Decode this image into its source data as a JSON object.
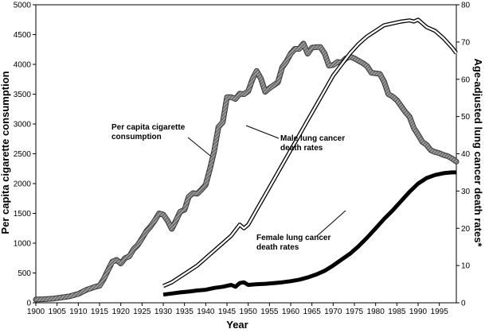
{
  "chart_data": {
    "type": "line",
    "xlabel": "Year",
    "ylabel_left": "Per capita cigarette consumption",
    "ylabel_right": "Age-adjusted lung cancer death rates*",
    "xlim": [
      1900,
      1999
    ],
    "ylim_left": [
      0,
      5000
    ],
    "ylim_right": [
      0,
      80
    ],
    "x_ticks": [
      1900,
      1905,
      1910,
      1915,
      1920,
      1925,
      1930,
      1935,
      1940,
      1945,
      1950,
      1955,
      1960,
      1965,
      1970,
      1975,
      1980,
      1985,
      1990,
      1995
    ],
    "y_ticks_left": [
      0,
      500,
      1000,
      1500,
      2000,
      2500,
      3000,
      3500,
      4000,
      4500,
      5000
    ],
    "y_ticks_right": [
      0,
      10,
      20,
      30,
      40,
      50,
      60,
      70,
      80
    ],
    "grid": false,
    "series": [
      {
        "name": "Per capita cigarette consumption",
        "axis": "left",
        "label_lines": [
          "Per capita cigarette",
          "consumption"
        ],
        "x": [
          1900,
          1902,
          1904,
          1906,
          1908,
          1910,
          1912,
          1914,
          1915,
          1916,
          1917,
          1918,
          1919,
          1920,
          1921,
          1922,
          1923,
          1924,
          1925,
          1926,
          1927,
          1928,
          1929,
          1930,
          1931,
          1932,
          1933,
          1934,
          1935,
          1936,
          1937,
          1938,
          1939,
          1940,
          1941,
          1942,
          1943,
          1944,
          1945,
          1946,
          1947,
          1948,
          1949,
          1950,
          1951,
          1952,
          1953,
          1954,
          1955,
          1956,
          1957,
          1958,
          1959,
          1960,
          1961,
          1962,
          1963,
          1964,
          1965,
          1966,
          1967,
          1968,
          1969,
          1970,
          1971,
          1972,
          1973,
          1974,
          1975,
          1976,
          1977,
          1978,
          1979,
          1980,
          1981,
          1982,
          1983,
          1984,
          1985,
          1986,
          1987,
          1988,
          1989,
          1990,
          1991,
          1992,
          1993,
          1994,
          1995,
          1996,
          1997,
          1998,
          1999
        ],
        "values": [
          54,
          60,
          70,
          90,
          110,
          150,
          220,
          270,
          285,
          400,
          550,
          690,
          720,
          660,
          750,
          780,
          900,
          970,
          1080,
          1200,
          1280,
          1380,
          1500,
          1480,
          1380,
          1240,
          1380,
          1530,
          1560,
          1780,
          1840,
          1830,
          1900,
          1980,
          2250,
          2550,
          2950,
          3030,
          3450,
          3450,
          3420,
          3510,
          3500,
          3550,
          3750,
          3890,
          3760,
          3540,
          3600,
          3650,
          3700,
          3950,
          4050,
          4180,
          4260,
          4260,
          4350,
          4180,
          4280,
          4290,
          4290,
          4180,
          3980,
          3990,
          4040,
          4030,
          4100,
          4130,
          4100,
          4060,
          4020,
          3970,
          3860,
          3850,
          3840,
          3710,
          3500,
          3460,
          3400,
          3300,
          3200,
          3120,
          2930,
          2820,
          2700,
          2650,
          2560,
          2530,
          2510,
          2480,
          2460,
          2420,
          2370
        ],
        "color": "#555555",
        "style": "hatched"
      },
      {
        "name": "Male lung cancer death rates",
        "axis": "right",
        "label_lines": [
          "Male lung cancer",
          "death rates"
        ],
        "x": [
          1930,
          1932,
          1934,
          1936,
          1938,
          1940,
          1942,
          1944,
          1946,
          1948,
          1949,
          1950,
          1952,
          1954,
          1956,
          1958,
          1960,
          1962,
          1964,
          1966,
          1968,
          1970,
          1972,
          1974,
          1976,
          1978,
          1980,
          1982,
          1984,
          1986,
          1988,
          1989,
          1990,
          1991,
          1992,
          1994,
          1996,
          1998,
          1999
        ],
        "values": [
          4.5,
          5.5,
          7,
          8.5,
          10,
          12,
          14,
          16,
          18,
          21,
          20,
          21,
          25,
          29,
          33,
          37,
          41,
          45,
          49,
          53,
          57,
          61,
          64,
          67,
          69.5,
          71.5,
          73,
          74.5,
          75,
          75.5,
          75.8,
          75.5,
          76,
          75,
          74,
          73,
          71,
          68.5,
          67
        ],
        "color": "#000000",
        "style": "double"
      },
      {
        "name": "Female lung cancer death rates",
        "axis": "right",
        "label_lines": [
          "Female lung cancer",
          "death rates"
        ],
        "x": [
          1930,
          1932,
          1934,
          1936,
          1938,
          1940,
          1942,
          1944,
          1946,
          1947,
          1948,
          1949,
          1950,
          1952,
          1954,
          1956,
          1958,
          1960,
          1962,
          1964,
          1966,
          1968,
          1970,
          1972,
          1974,
          1976,
          1978,
          1980,
          1982,
          1984,
          1986,
          1988,
          1990,
          1992,
          1994,
          1996,
          1998,
          1999
        ],
        "values": [
          2.2,
          2.5,
          2.8,
          3,
          3.3,
          3.5,
          4,
          4.3,
          4.8,
          4.3,
          5.3,
          5.5,
          4.8,
          5,
          5.1,
          5.3,
          5.5,
          5.8,
          6.2,
          6.8,
          7.6,
          8.6,
          10,
          11.6,
          13.2,
          15.2,
          17.5,
          20,
          22.5,
          24.8,
          27.3,
          29.8,
          32,
          33.5,
          34.3,
          34.8,
          35,
          35
        ],
        "color": "#000000",
        "style": "solid"
      }
    ]
  }
}
